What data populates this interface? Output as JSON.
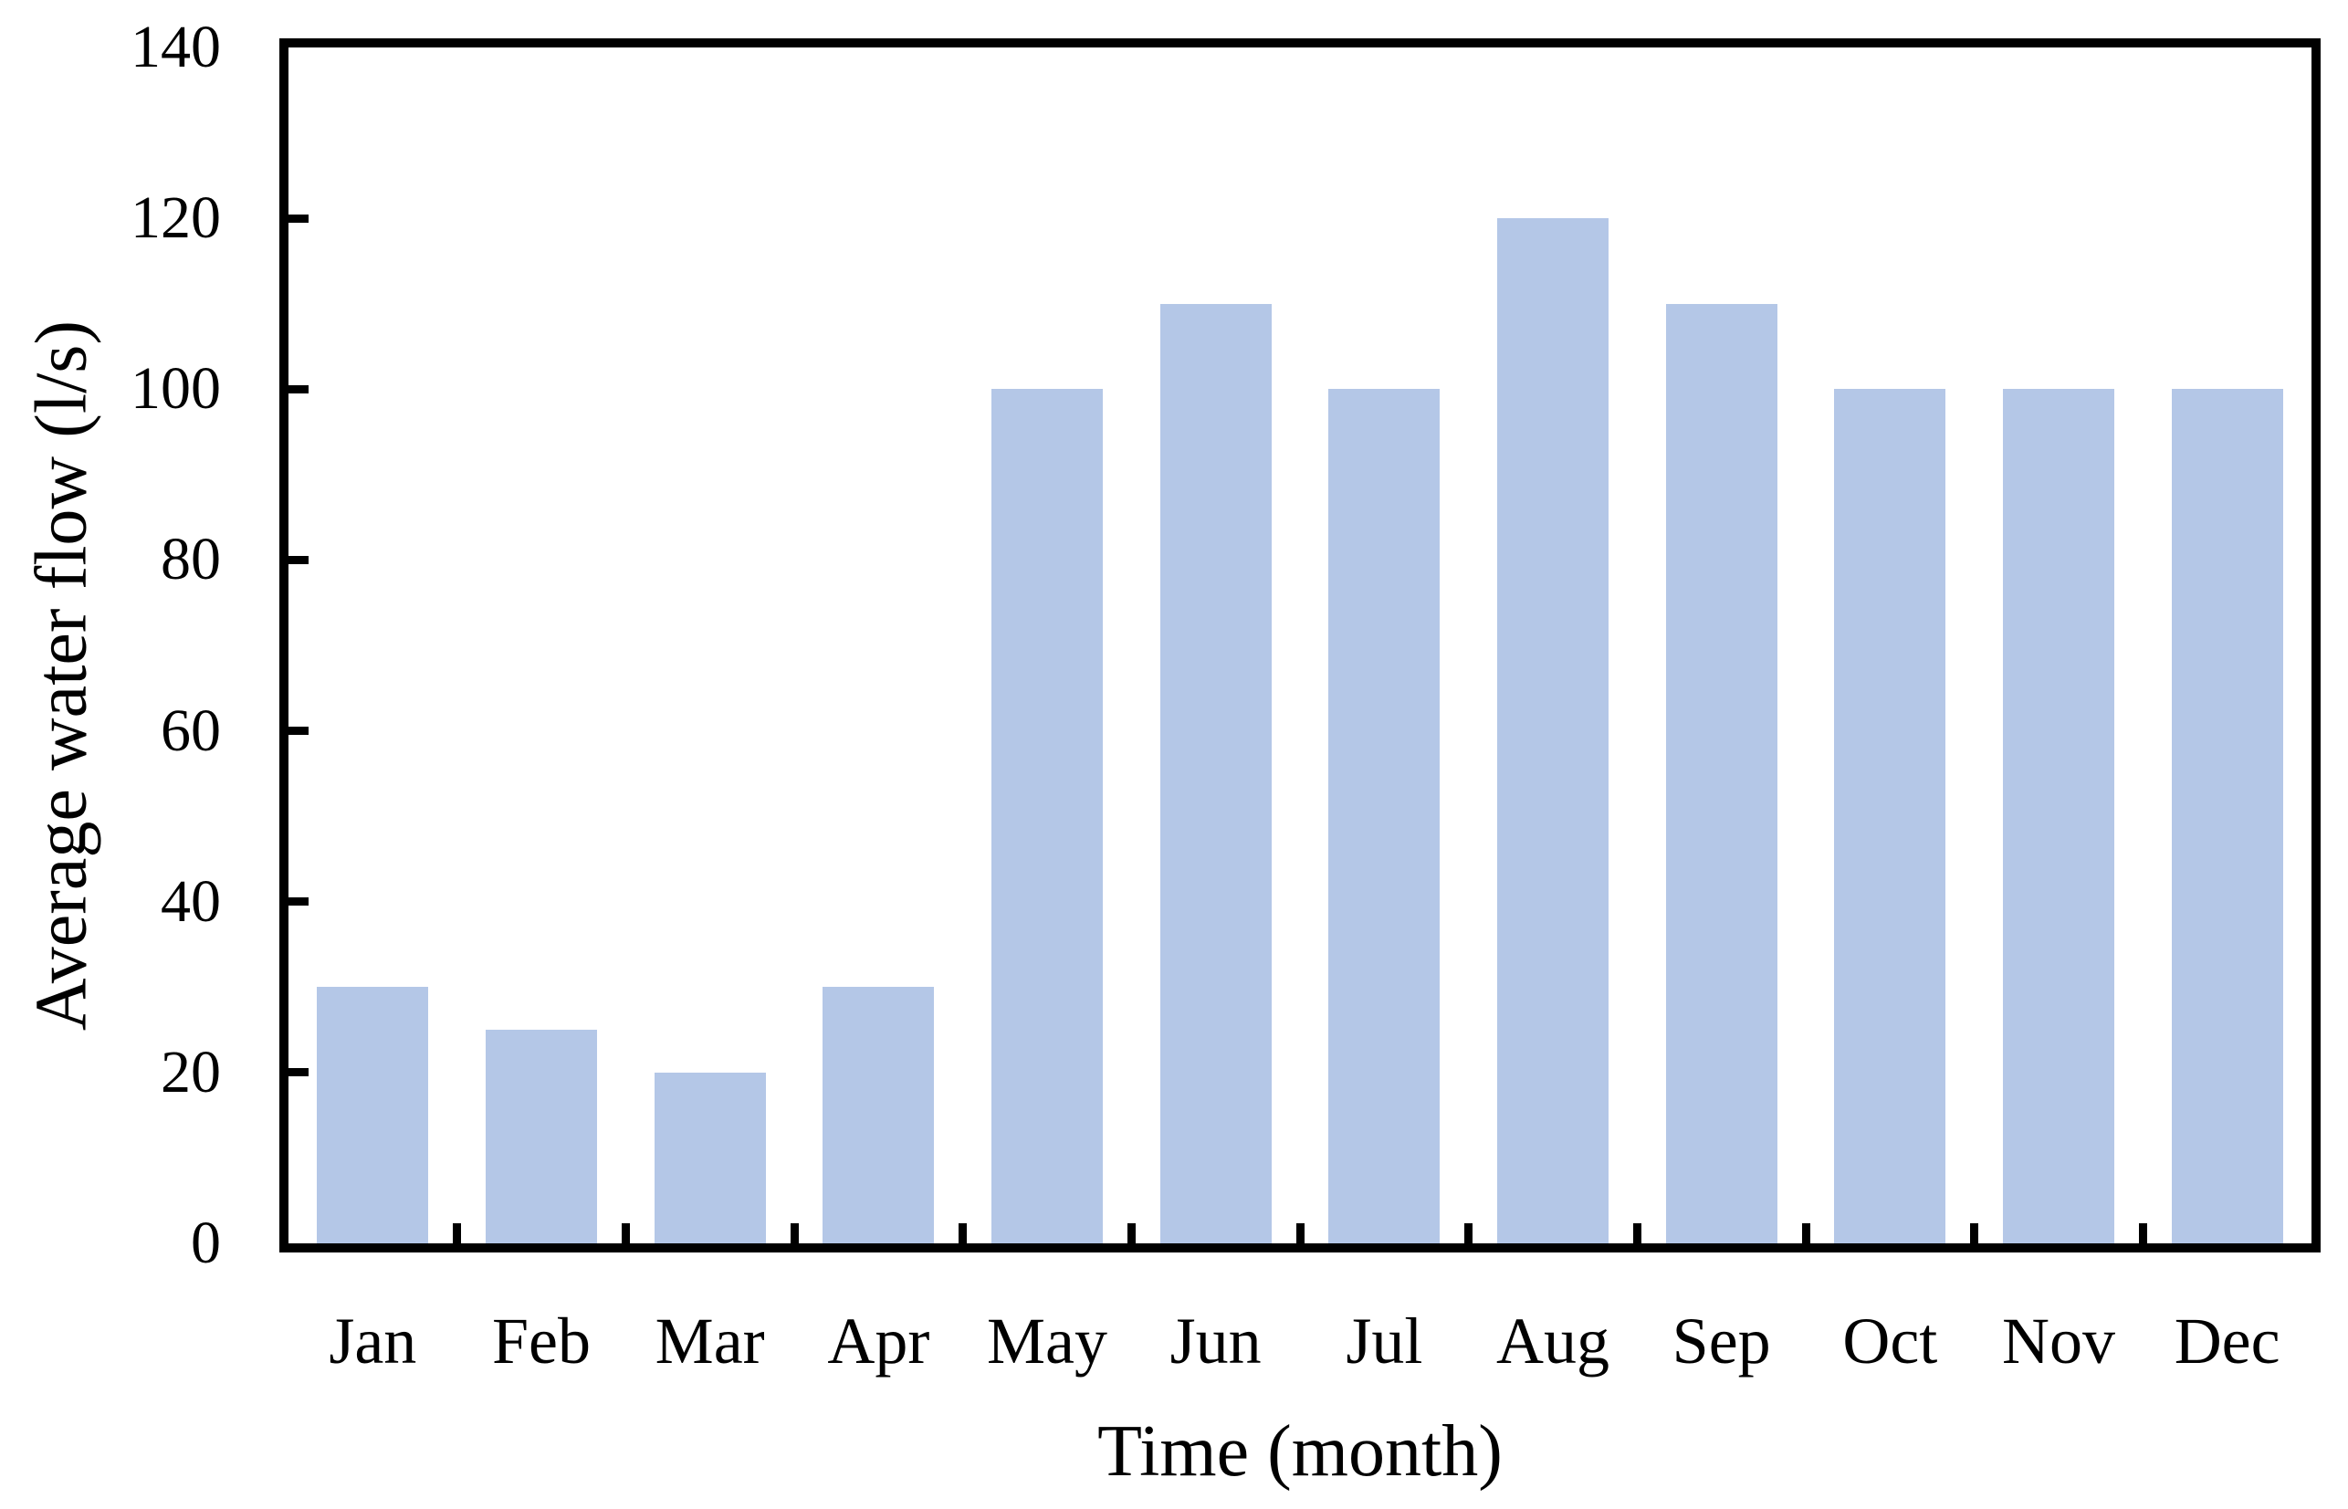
{
  "figure": {
    "background_color": "#ffffff",
    "axis_color": "#000000",
    "text_color": "#000000"
  },
  "chart_data": {
    "type": "bar",
    "title": "",
    "categories": [
      "Jan",
      "Feb",
      "Mar",
      "Apr",
      "May",
      "Jun",
      "Jul",
      "Aug",
      "Sep",
      "Oct",
      "Nov",
      "Dec"
    ],
    "values": [
      30,
      25,
      20,
      30,
      100,
      110,
      100,
      120,
      110,
      100,
      100,
      100
    ],
    "xlabel": "Time (month)",
    "ylabel": "Average water flow (l/s)",
    "ylim": [
      0,
      140
    ],
    "yticks": [
      0,
      20,
      40,
      60,
      80,
      100,
      120,
      140
    ],
    "grid": false,
    "legend_position": "none",
    "bar_color": "#b4c7e7",
    "tick_direction": "in"
  }
}
